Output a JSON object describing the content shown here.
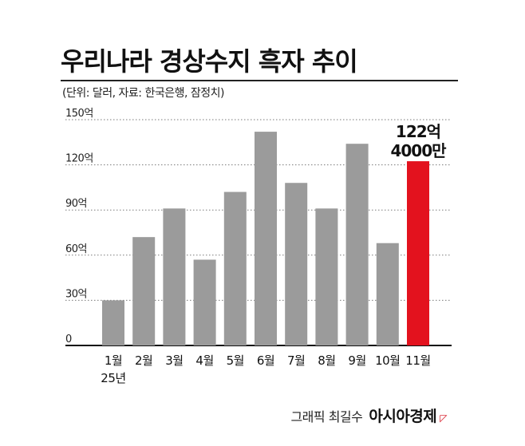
{
  "title": "우리나라 경상수지 흑자 추이",
  "subtitle": "(단위: 달러, 자료: 한국은행, 잠정치)",
  "credit": {
    "text": "그래픽 최길수",
    "brand": "아시아경제",
    "mark": "◸"
  },
  "chart_data": {
    "type": "bar",
    "unit": "억 달러",
    "categories": [
      "1월",
      "2월",
      "3월",
      "4월",
      "5월",
      "6월",
      "7월",
      "8월",
      "9월",
      "10월",
      "11월"
    ],
    "year_note": "25년",
    "values": [
      30,
      72,
      91,
      57,
      102,
      142,
      108,
      91,
      134,
      68,
      122.4
    ],
    "ylim": [
      0,
      150
    ],
    "yticks": [
      0,
      30,
      60,
      90,
      120,
      150
    ],
    "ytick_labels": [
      "0",
      "30억",
      "60억",
      "90억",
      "120억",
      "150억"
    ],
    "grid": true,
    "bar_color": "#9b9b9b",
    "highlight_color": "#e3121e",
    "highlight_index": 10,
    "highlight_label": [
      "122억",
      "4000만"
    ]
  }
}
